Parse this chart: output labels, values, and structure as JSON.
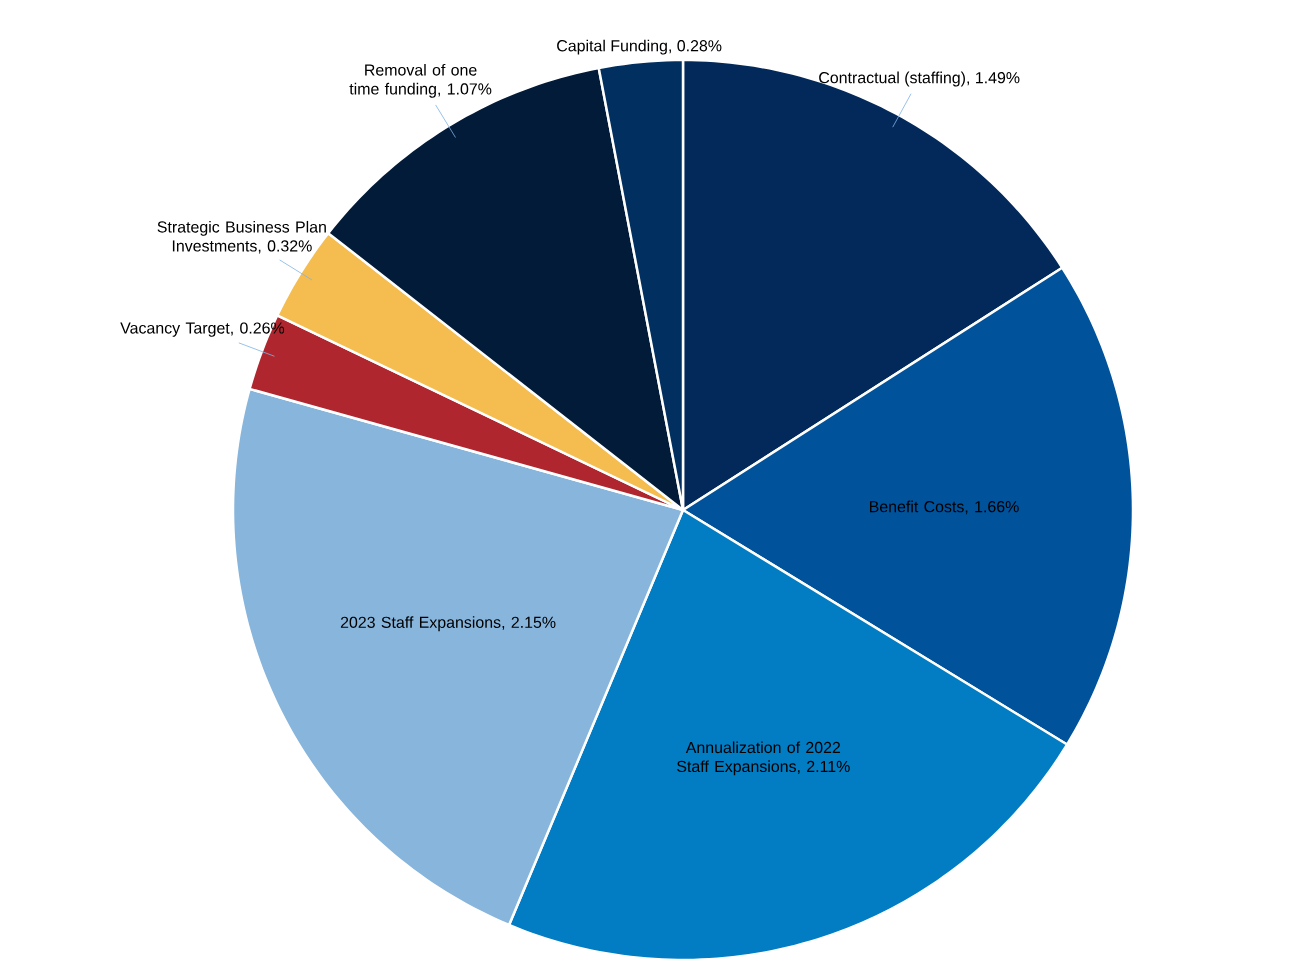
{
  "chart_data": {
    "type": "pie",
    "categories": [
      "Contractual (staffing)",
      "Benefit Costs",
      "Annualization of 2022 Staff Expansions",
      "2023 Staff Expansions",
      "Vacancy Target",
      "Strategic Business Plan Investments",
      "Removal of one time funding",
      "Capital Funding"
    ],
    "values": [
      1.49,
      1.66,
      2.11,
      2.15,
      0.26,
      0.32,
      1.07,
      0.28
    ],
    "value_labels": [
      ", 1.49%",
      ", 1.66%",
      ", 2.11%",
      ", 2.15%",
      ", 0.26%",
      ", 0.32%",
      ", 1.07%",
      ", 0.28%"
    ],
    "colors": [
      "#03295a",
      "#00529b",
      "#027cc2",
      "#87b5dc",
      "#b0262e",
      "#f5bd4f",
      "#021b39",
      "#013060"
    ]
  }
}
